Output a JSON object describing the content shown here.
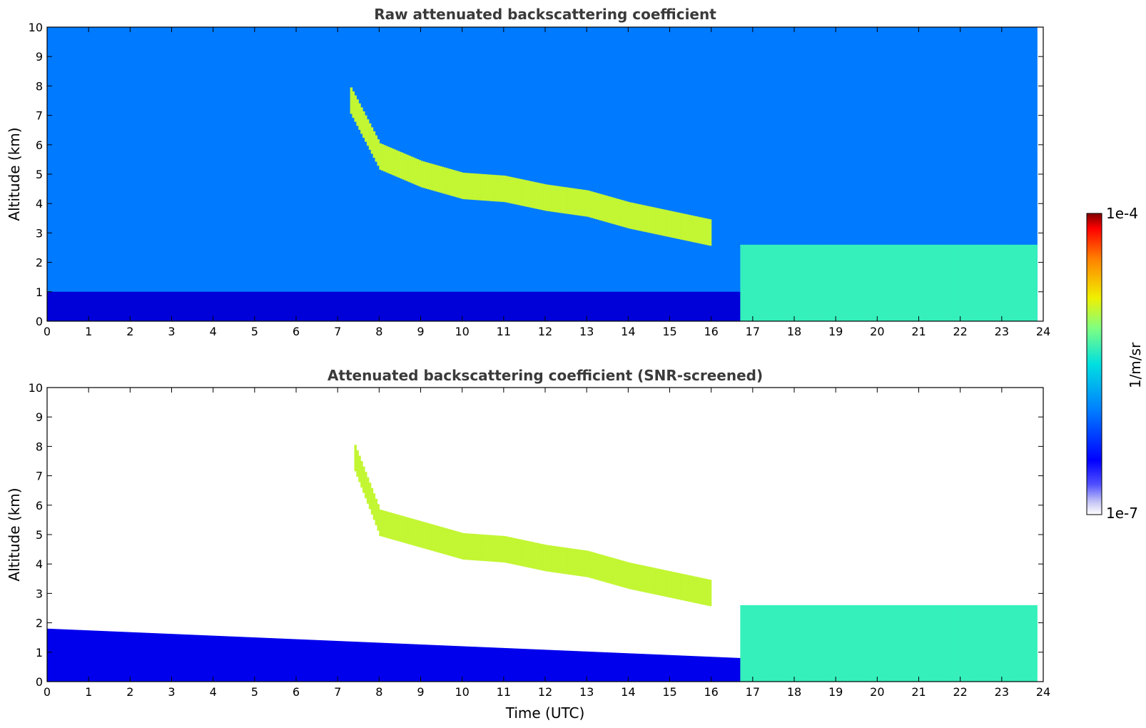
{
  "chart_data": [
    {
      "type": "heatmap",
      "title": "Raw attenuated backscattering coefficient",
      "xlabel": "",
      "ylabel": "Altitude (km)",
      "xlim": [
        0,
        24
      ],
      "ylim": [
        0,
        10
      ],
      "x_ticks": [
        "0",
        "1",
        "2",
        "3",
        "4",
        "5",
        "6",
        "7",
        "8",
        "9",
        "10",
        "11",
        "12",
        "13",
        "14",
        "15",
        "16",
        "17",
        "18",
        "19",
        "20",
        "21",
        "22",
        "23",
        "24"
      ],
      "y_ticks": [
        "0",
        "1",
        "2",
        "3",
        "4",
        "5",
        "6",
        "7",
        "8",
        "9",
        "10"
      ],
      "data_end_time": 23.85,
      "features": [
        {
          "label": "background",
          "t0": 0,
          "t1": 23.85,
          "base": 0,
          "top": 10,
          "level": 0.3
        },
        {
          "label": "boundary-layer",
          "t0": 0,
          "t1": 16.7,
          "base": 0,
          "top": 1.0,
          "level": 0.08
        },
        {
          "label": "cirrus",
          "points": [
            [
              7.3,
              7.5
            ],
            [
              8.0,
              5.6
            ],
            [
              9.0,
              5.0
            ],
            [
              10.0,
              4.6
            ],
            [
              11.0,
              4.5
            ],
            [
              12.0,
              4.2
            ],
            [
              13.0,
              4.0
            ],
            [
              14.0,
              3.6
            ],
            [
              15.0,
              3.3
            ],
            [
              16.0,
              3.0
            ]
          ],
          "thickness": 0.9,
          "level": 0.68
        },
        {
          "label": "low-clouds",
          "t0": 16.7,
          "t1": 23.85,
          "base": 0,
          "top": 2.6,
          "level": 0.55
        }
      ]
    },
    {
      "type": "heatmap",
      "title": "Attenuated backscattering coefficient (SNR-screened)",
      "xlabel": "Time (UTC)",
      "ylabel": "Altitude (km)",
      "xlim": [
        0,
        24
      ],
      "ylim": [
        0,
        10
      ],
      "x_ticks": [
        "0",
        "1",
        "2",
        "3",
        "4",
        "5",
        "6",
        "7",
        "8",
        "9",
        "10",
        "11",
        "12",
        "13",
        "14",
        "15",
        "16",
        "17",
        "18",
        "19",
        "20",
        "21",
        "22",
        "23",
        "24"
      ],
      "y_ticks": [
        "0",
        "1",
        "2",
        "3",
        "4",
        "5",
        "6",
        "7",
        "8",
        "9",
        "10"
      ],
      "data_end_time": 23.85,
      "features": [
        {
          "label": "boundary-layer",
          "t0": 0,
          "t1": 16.7,
          "base": 0,
          "top_start": 1.8,
          "top_end": 0.8,
          "level": 0.1
        },
        {
          "label": "cirrus",
          "points": [
            [
              7.4,
              7.6
            ],
            [
              8.0,
              5.4
            ],
            [
              9.0,
              5.0
            ],
            [
              10.0,
              4.6
            ],
            [
              11.0,
              4.5
            ],
            [
              12.0,
              4.2
            ],
            [
              13.0,
              4.0
            ],
            [
              14.0,
              3.6
            ],
            [
              15.0,
              3.3
            ],
            [
              16.0,
              3.0
            ]
          ],
          "thickness": 0.9,
          "level": 0.68
        },
        {
          "label": "low-clouds",
          "t0": 16.7,
          "t1": 23.85,
          "base": 0,
          "top": 2.6,
          "level": 0.55
        }
      ]
    }
  ],
  "colorbar": {
    "max_label": "1e-4",
    "min_label": "1e-7",
    "unit_label": "1/m/sr",
    "colormap": "jet"
  }
}
